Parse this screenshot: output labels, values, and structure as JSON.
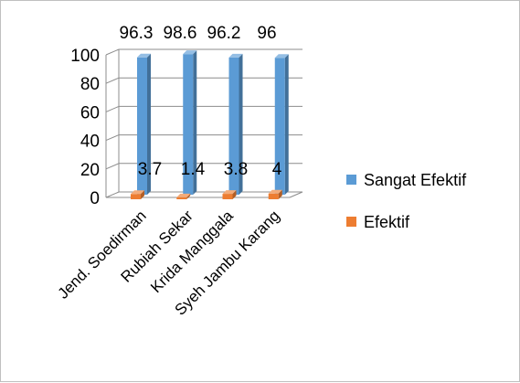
{
  "chart_data": {
    "type": "bar",
    "categories": [
      "Jend. Soedirman",
      "Rubiah Sekar",
      "Krida Manggala",
      "Syeh Jambu Karang"
    ],
    "series": [
      {
        "name": "Sangat Efektif",
        "values": [
          96.3,
          98.6,
          96.2,
          96
        ],
        "labels": [
          "96.3",
          "98.6",
          "96.2",
          "96"
        ],
        "color": "#5b9bd5"
      },
      {
        "name": "Efektif",
        "values": [
          3.7,
          1.4,
          3.8,
          4
        ],
        "labels": [
          "3.7",
          "1.4",
          "3.8",
          "4"
        ],
        "color": "#ed7d31"
      }
    ],
    "ylim": [
      0,
      100
    ],
    "yticks": [
      "0",
      "20",
      "40",
      "60",
      "80",
      "100"
    ],
    "grid": true,
    "legend_position": "right",
    "three_d": true
  }
}
